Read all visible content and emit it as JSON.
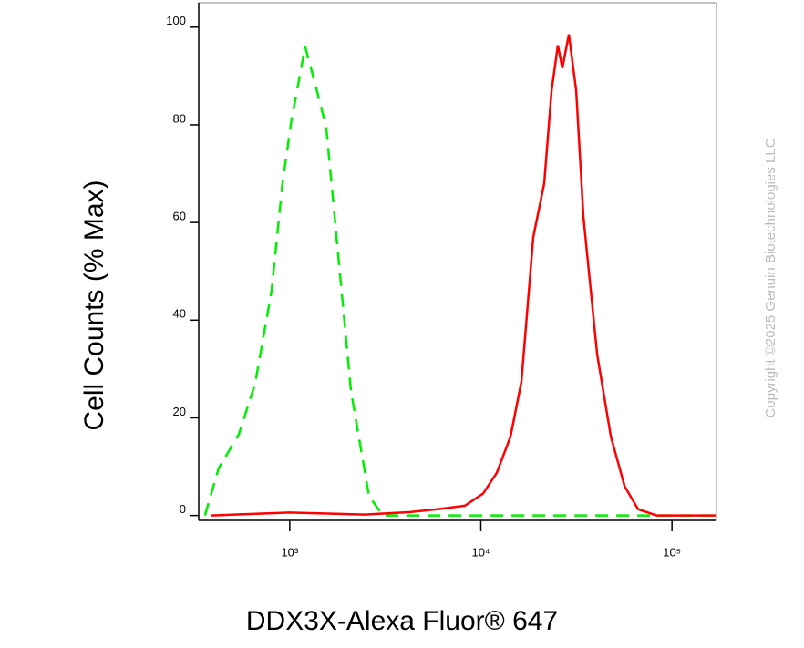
{
  "chart_data": {
    "type": "line",
    "x_label": "DDX3X-Alexa Fluor® 647",
    "y_label": "Cell Counts (% Max)",
    "watermark": "Copyright ©2025 Genuin Biotechnologies LLC",
    "xscale": "log",
    "xlim": [
      334,
      171000
    ],
    "ylim": [
      -1,
      105
    ],
    "xticks": [
      {
        "value": 1000,
        "label": "10³"
      },
      {
        "value": 10000,
        "label": "10⁴"
      },
      {
        "value": 100000,
        "label": "10⁵"
      }
    ],
    "yticks": [
      0,
      20,
      40,
      60,
      80,
      100
    ],
    "series": [
      {
        "color": "#00ee00",
        "dashed": true,
        "x": [
          360,
          425,
          541,
          659,
          803,
          916,
          1022,
          1205,
          1345,
          1552,
          1811,
          2090,
          2600,
          3070,
          170000
        ],
        "values": [
          0,
          9.7,
          16.6,
          27,
          46,
          68,
          81,
          96,
          89,
          79.5,
          51.6,
          25.5,
          4,
          0,
          0
        ]
      },
      {
        "color": "#ff0000",
        "dashed": false,
        "x": [
          389,
          1000,
          2460,
          4270,
          5930,
          8240,
          10280,
          12130,
          14300,
          16300,
          18800,
          21460,
          23440,
          25300,
          26700,
          28900,
          31550,
          34450,
          40600,
          47900,
          56500,
          66500,
          83000,
          170000
        ],
        "values": [
          0,
          0.6,
          0.2,
          0.7,
          1.3,
          2,
          4.5,
          8.8,
          16.2,
          27.4,
          57,
          68,
          87,
          96.3,
          91.6,
          98.5,
          87,
          61,
          33,
          16.2,
          6,
          1.3,
          0,
          0
        ]
      }
    ]
  }
}
